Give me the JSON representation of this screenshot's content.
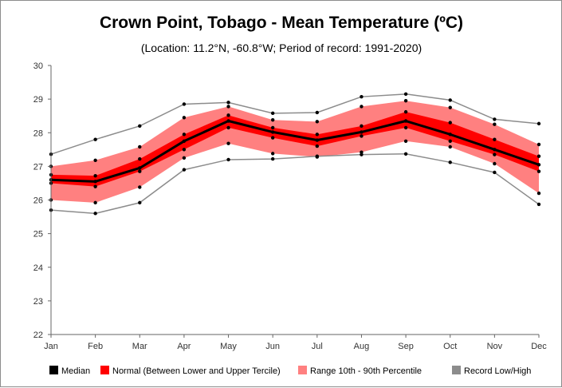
{
  "chart_data": {
    "type": "line",
    "title": "Crown Point, Tobago - Mean Temperature (ºC)",
    "subtitle": "(Location: 11.2°N, -60.8°W; Period of record: 1991-2020)",
    "categories": [
      "Jan",
      "Feb",
      "Mar",
      "Apr",
      "May",
      "Jun",
      "Jul",
      "Aug",
      "Sep",
      "Oct",
      "Nov",
      "Dec"
    ],
    "ylim": [
      22,
      30
    ],
    "yticks": [
      "22",
      "23",
      "24",
      "25",
      "26",
      "27",
      "28",
      "29",
      "30"
    ],
    "grid": false,
    "legend_position": "bottom",
    "colors": {
      "median": "#000000",
      "normal": "#ff0000",
      "percentile": "#ff8080",
      "record": "#8c8c8c"
    },
    "series": [
      {
        "name": "Median",
        "values": [
          26.6,
          26.55,
          26.95,
          27.75,
          28.35,
          28.02,
          27.78,
          28.02,
          28.35,
          27.95,
          27.5,
          27.05
        ]
      },
      {
        "name": "Normal (Between Lower and Upper Tercile)",
        "lower": [
          26.5,
          26.4,
          26.85,
          27.5,
          28.15,
          27.85,
          27.6,
          27.9,
          28.15,
          27.75,
          27.35,
          26.85
        ],
        "upper": [
          26.75,
          26.72,
          27.22,
          27.95,
          28.52,
          28.15,
          27.95,
          28.2,
          28.62,
          28.3,
          27.8,
          27.3
        ]
      },
      {
        "name": "Range 10th - 90th Percentile",
        "lower": [
          26.0,
          25.92,
          26.38,
          27.25,
          27.68,
          27.38,
          27.28,
          27.42,
          27.75,
          27.58,
          27.08,
          26.2
        ],
        "upper": [
          27.0,
          27.18,
          27.58,
          28.45,
          28.78,
          28.38,
          28.33,
          28.78,
          28.95,
          28.75,
          28.25,
          27.65
        ]
      },
      {
        "name": "Record Low/High",
        "lower": [
          25.7,
          25.6,
          25.92,
          26.9,
          27.2,
          27.22,
          27.3,
          27.35,
          27.37,
          27.12,
          26.82,
          25.87
        ],
        "upper": [
          27.36,
          27.8,
          28.2,
          28.85,
          28.9,
          28.58,
          28.6,
          29.07,
          29.15,
          28.97,
          28.4,
          28.27
        ]
      }
    ]
  }
}
